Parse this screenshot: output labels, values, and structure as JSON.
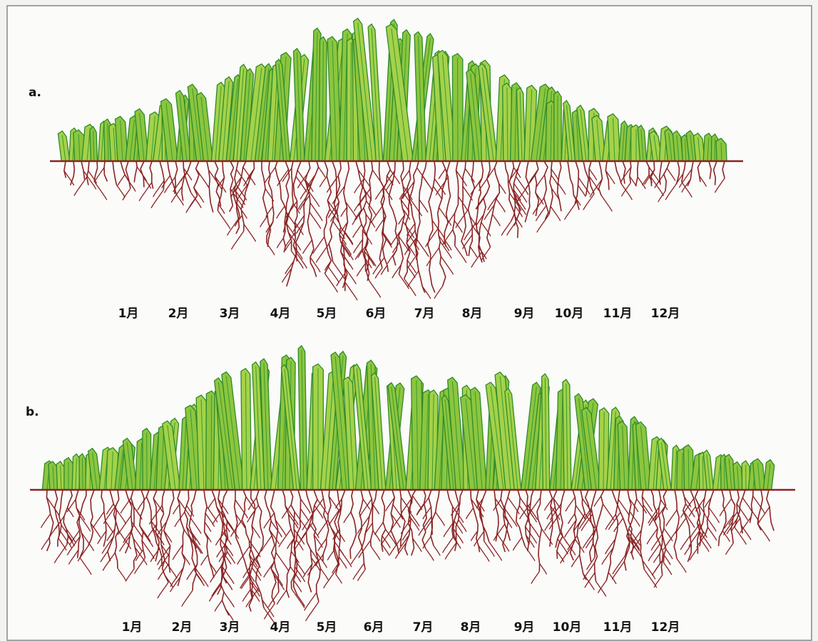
{
  "panels": [
    {
      "label": "a.",
      "months": [
        "1月",
        "2月",
        "3月",
        "4月",
        "5月",
        "6月",
        "7月",
        "8月",
        "9月",
        "10月",
        "11月",
        "12月"
      ]
    },
    {
      "label": "b.",
      "months": [
        "1月",
        "2月",
        "3月",
        "4月",
        "5月",
        "6月",
        "7月",
        "8月",
        "9月",
        "10月",
        "11月",
        "12月"
      ]
    }
  ]
}
